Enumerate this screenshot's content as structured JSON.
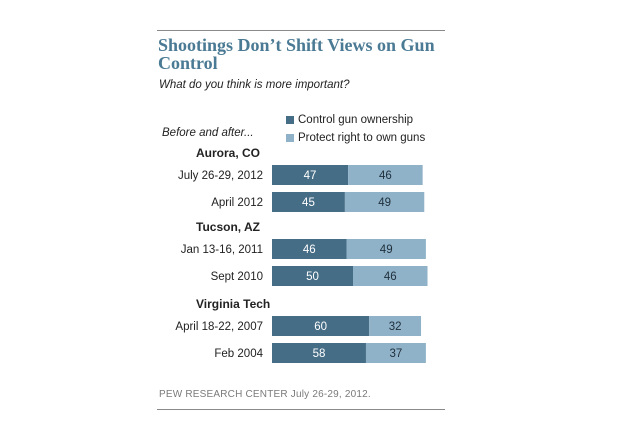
{
  "title": "Shootings Don’t Shift Views on Gun Control",
  "subtitle": "What do you think is more important?",
  "before_after_label": "Before and after...",
  "source": "PEW RESEARCH  CENTER July 26-29, 2012.",
  "colors": {
    "control": "#466d86",
    "protect": "#90b2c9",
    "title": "#4a7a94"
  },
  "chart_data": {
    "type": "bar",
    "orientation": "horizontal",
    "stacked": true,
    "title": "Shootings Don’t Shift Views on Gun Control",
    "subtitle": "What do you think is more important?",
    "legend_position": "top-right",
    "grid": false,
    "groups": [
      {
        "name": "Aurora, CO",
        "categories": [
          "July 26-29, 2012",
          "April 2012"
        ],
        "control": [
          47,
          45
        ],
        "protect": [
          46,
          49
        ]
      },
      {
        "name": "Tucson, AZ",
        "categories": [
          "Jan 13-16, 2011",
          "Sept 2010"
        ],
        "control": [
          46,
          50
        ],
        "protect": [
          49,
          46
        ]
      },
      {
        "name": "Virginia Tech",
        "categories": [
          "April 18-22, 2007",
          "Feb 2004"
        ],
        "control": [
          60,
          58
        ],
        "protect": [
          32,
          37
        ]
      }
    ],
    "series": [
      {
        "name": "Control gun ownership",
        "key": "control"
      },
      {
        "name": "Protect right to own guns",
        "key": "protect"
      }
    ]
  }
}
